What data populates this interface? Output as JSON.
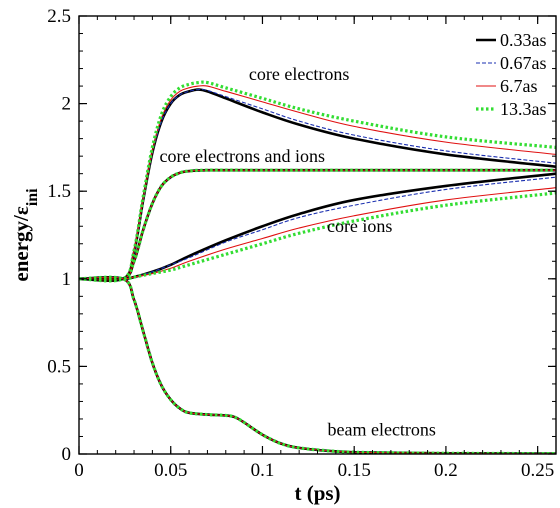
{
  "chart_data": {
    "type": "line",
    "xlabel": "t (ps)",
    "ylabel_main": "energy/ε",
    "ylabel_sub": "ini",
    "xlim": [
      0,
      0.26
    ],
    "ylim": [
      0,
      2.5
    ],
    "x_ticks": [
      0,
      0.05,
      0.1,
      0.15,
      0.2,
      0.25
    ],
    "x_tick_labels": [
      "0",
      "0.05",
      "0.1",
      "0.15",
      "0.2",
      "0.25"
    ],
    "y_ticks": [
      0,
      0.5,
      1,
      1.5,
      2,
      2.5
    ],
    "y_tick_labels": [
      "0",
      "0.5",
      "1",
      "1.5",
      "2",
      "2.5"
    ],
    "grid": false,
    "legend_position": "top-right",
    "annotations": [
      {
        "text": "core electrons",
        "x": 0.12,
        "y": 2.17
      },
      {
        "text": "core electrons and ions",
        "x": 0.089,
        "y": 1.7
      },
      {
        "text": "core ions",
        "x": 0.153,
        "y": 1.3
      },
      {
        "text": "beam electrons",
        "x": 0.165,
        "y": 0.14
      }
    ],
    "series": [
      {
        "name": "0.33as",
        "color": "#000000",
        "style": "solid",
        "width": 2.6
      },
      {
        "name": "0.67as",
        "color": "#1a2fb0",
        "style": "dashed",
        "width": 1.1
      },
      {
        "name": "6.7as",
        "color": "#e01010",
        "style": "solid",
        "width": 1.1
      },
      {
        "name": "13.3as",
        "color": "#33dd33",
        "style": "dotted",
        "width": 3.2
      }
    ],
    "curves": {
      "core_electrons": {
        "0.33as": [
          [
            0,
            1
          ],
          [
            0.024,
            1
          ],
          [
            0.03,
            1.15
          ],
          [
            0.035,
            1.45
          ],
          [
            0.04,
            1.72
          ],
          [
            0.045,
            1.9
          ],
          [
            0.05,
            2.0
          ],
          [
            0.055,
            2.05
          ],
          [
            0.06,
            2.07
          ],
          [
            0.065,
            2.08
          ],
          [
            0.07,
            2.07
          ],
          [
            0.08,
            2.03
          ],
          [
            0.1,
            1.95
          ],
          [
            0.12,
            1.88
          ],
          [
            0.15,
            1.8
          ],
          [
            0.2,
            1.71
          ],
          [
            0.26,
            1.64
          ]
        ],
        "0.67as": [
          [
            0,
            1
          ],
          [
            0.024,
            1
          ],
          [
            0.03,
            1.15
          ],
          [
            0.035,
            1.45
          ],
          [
            0.04,
            1.72
          ],
          [
            0.045,
            1.9
          ],
          [
            0.05,
            2.0
          ],
          [
            0.055,
            2.05
          ],
          [
            0.06,
            2.07
          ],
          [
            0.065,
            2.08
          ],
          [
            0.07,
            2.075
          ],
          [
            0.08,
            2.04
          ],
          [
            0.1,
            1.97
          ],
          [
            0.12,
            1.9
          ],
          [
            0.15,
            1.82
          ],
          [
            0.2,
            1.73
          ],
          [
            0.26,
            1.66
          ]
        ],
        "6.7as": [
          [
            0,
            1
          ],
          [
            0.024,
            1
          ],
          [
            0.03,
            1.16
          ],
          [
            0.035,
            1.46
          ],
          [
            0.04,
            1.73
          ],
          [
            0.045,
            1.92
          ],
          [
            0.05,
            2.02
          ],
          [
            0.055,
            2.07
          ],
          [
            0.06,
            2.09
          ],
          [
            0.065,
            2.1
          ],
          [
            0.07,
            2.1
          ],
          [
            0.08,
            2.07
          ],
          [
            0.1,
            2.01
          ],
          [
            0.12,
            1.95
          ],
          [
            0.15,
            1.87
          ],
          [
            0.2,
            1.78
          ],
          [
            0.26,
            1.71
          ]
        ],
        "13.3as": [
          [
            0,
            1
          ],
          [
            0.024,
            1
          ],
          [
            0.03,
            1.16
          ],
          [
            0.035,
            1.47
          ],
          [
            0.04,
            1.75
          ],
          [
            0.045,
            1.94
          ],
          [
            0.05,
            2.04
          ],
          [
            0.055,
            2.09
          ],
          [
            0.06,
            2.11
          ],
          [
            0.065,
            2.12
          ],
          [
            0.07,
            2.12
          ],
          [
            0.08,
            2.09
          ],
          [
            0.1,
            2.03
          ],
          [
            0.12,
            1.97
          ],
          [
            0.15,
            1.9
          ],
          [
            0.2,
            1.81
          ],
          [
            0.26,
            1.75
          ]
        ]
      },
      "core_electrons_and_ions": {
        "all": [
          [
            0,
            1
          ],
          [
            0.024,
            1
          ],
          [
            0.03,
            1.1
          ],
          [
            0.035,
            1.28
          ],
          [
            0.04,
            1.43
          ],
          [
            0.045,
            1.53
          ],
          [
            0.05,
            1.58
          ],
          [
            0.055,
            1.605
          ],
          [
            0.06,
            1.615
          ],
          [
            0.07,
            1.62
          ],
          [
            0.1,
            1.62
          ],
          [
            0.15,
            1.62
          ],
          [
            0.2,
            1.62
          ],
          [
            0.26,
            1.62
          ]
        ]
      },
      "core_ions": {
        "0.33as": [
          [
            0,
            1
          ],
          [
            0.024,
            1
          ],
          [
            0.03,
            1.01
          ],
          [
            0.04,
            1.04
          ],
          [
            0.05,
            1.08
          ],
          [
            0.06,
            1.13
          ],
          [
            0.08,
            1.22
          ],
          [
            0.1,
            1.3
          ],
          [
            0.12,
            1.37
          ],
          [
            0.15,
            1.45
          ],
          [
            0.2,
            1.53
          ],
          [
            0.26,
            1.6
          ]
        ],
        "0.67as": [
          [
            0,
            1
          ],
          [
            0.024,
            1
          ],
          [
            0.03,
            1.01
          ],
          [
            0.04,
            1.04
          ],
          [
            0.05,
            1.08
          ],
          [
            0.06,
            1.12
          ],
          [
            0.08,
            1.21
          ],
          [
            0.1,
            1.28
          ],
          [
            0.12,
            1.35
          ],
          [
            0.15,
            1.42
          ],
          [
            0.2,
            1.51
          ],
          [
            0.26,
            1.58
          ]
        ],
        "6.7as": [
          [
            0,
            1
          ],
          [
            0.024,
            1
          ],
          [
            0.03,
            1.01
          ],
          [
            0.04,
            1.03
          ],
          [
            0.05,
            1.06
          ],
          [
            0.06,
            1.1
          ],
          [
            0.08,
            1.17
          ],
          [
            0.1,
            1.23
          ],
          [
            0.12,
            1.29
          ],
          [
            0.15,
            1.36
          ],
          [
            0.2,
            1.45
          ],
          [
            0.26,
            1.52
          ]
        ],
        "13.3as": [
          [
            0,
            1
          ],
          [
            0.024,
            1
          ],
          [
            0.03,
            1.01
          ],
          [
            0.04,
            1.03
          ],
          [
            0.05,
            1.05
          ],
          [
            0.06,
            1.08
          ],
          [
            0.08,
            1.14
          ],
          [
            0.1,
            1.2
          ],
          [
            0.12,
            1.26
          ],
          [
            0.15,
            1.33
          ],
          [
            0.2,
            1.42
          ],
          [
            0.26,
            1.49
          ]
        ]
      },
      "beam_electrons": {
        "all": [
          [
            0,
            1
          ],
          [
            0.024,
            1
          ],
          [
            0.03,
            0.88
          ],
          [
            0.035,
            0.7
          ],
          [
            0.04,
            0.52
          ],
          [
            0.045,
            0.39
          ],
          [
            0.05,
            0.31
          ],
          [
            0.055,
            0.26
          ],
          [
            0.06,
            0.235
          ],
          [
            0.07,
            0.225
          ],
          [
            0.08,
            0.22
          ],
          [
            0.085,
            0.21
          ],
          [
            0.09,
            0.18
          ],
          [
            0.1,
            0.11
          ],
          [
            0.11,
            0.06
          ],
          [
            0.12,
            0.035
          ],
          [
            0.14,
            0.015
          ],
          [
            0.16,
            0.008
          ],
          [
            0.2,
            0.004
          ],
          [
            0.26,
            0.002
          ]
        ]
      }
    }
  }
}
